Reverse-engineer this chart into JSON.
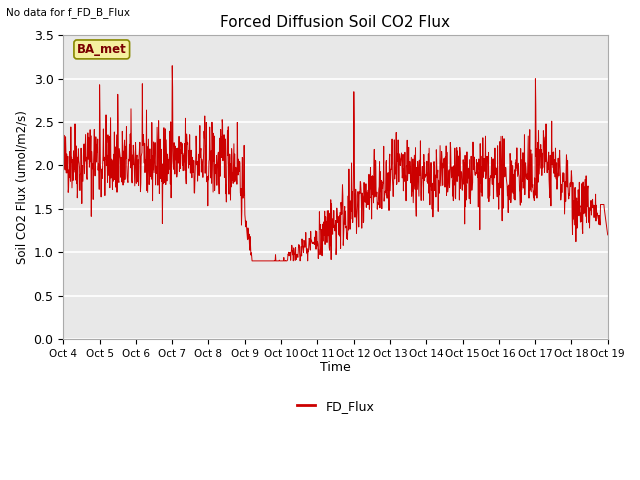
{
  "title": "Forced Diffusion Soil CO2 Flux",
  "xlabel": "Time",
  "ylabel": "Soil CO2 Flux (umol/m2/s)",
  "top_left_text": "No data for f_FD_B_Flux",
  "legend_label": "FD_Flux",
  "legend_box_label": "BA_met",
  "ylim": [
    0.0,
    3.5
  ],
  "yticks": [
    0.0,
    0.5,
    1.0,
    1.5,
    2.0,
    2.5,
    3.0,
    3.5
  ],
  "line_color": "#cc0000",
  "figure_bg": "#ffffff",
  "axes_bg_color": "#e8e8e8",
  "grid_color": "white",
  "x_tick_labels": [
    "Oct 4",
    "Oct 5",
    "Oct 6",
    "Oct 7",
    "Oct 8",
    "Oct 9",
    "Oct 10",
    "Oct 11",
    "Oct 12",
    "Oct 13",
    "Oct 14",
    "Oct 15",
    "Oct 16",
    "Oct 17",
    "Oct 18",
    "Oct 19"
  ],
  "seed": 42
}
